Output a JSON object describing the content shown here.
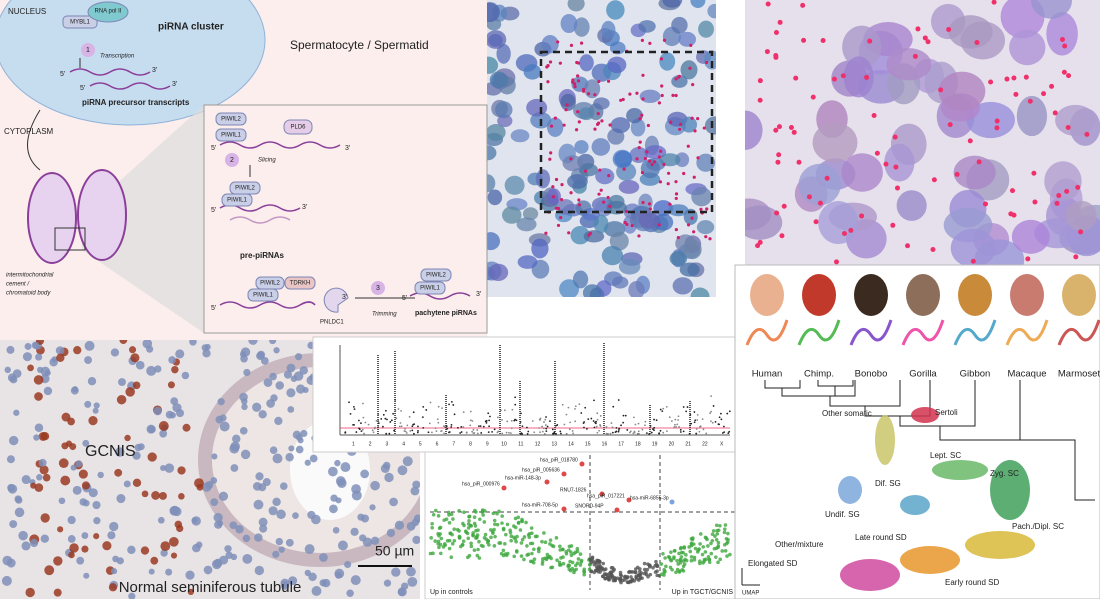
{
  "diagram": {
    "nucleus": "NUCLEUS",
    "mybl1": "MYBL1",
    "rna_pol": "RNA pol II",
    "cluster": "piRNA cluster",
    "step1": "1",
    "transcription": "Transcription",
    "ends": [
      "5'",
      "3'",
      "5'",
      "3'"
    ],
    "precursor": "piRNA precursor transcripts",
    "cytoplasm": "CYTOPLASM",
    "cell": "Spermatocyte / Spermatid",
    "cement": [
      "intermitochondrial",
      "cement /",
      "chromatoid body"
    ],
    "inset": {
      "piwil2_a": "PIWIL2",
      "piwil1_a": "PIWIL1",
      "pld6": "PLD6",
      "step2": "2",
      "slicing": "Slicing",
      "piwil2_b": "PIWIL2",
      "piwil1_b": "PIWIL1",
      "pre": "pre-piRNAs",
      "piwil2_c": "PIWIL2",
      "tdrkh": "TDRKH",
      "piwil1_c": "PIWIL1",
      "pnldc1": "PNLDC1",
      "step3": "3",
      "trimming": "Trimming",
      "piwil2_d": "PIWIL2",
      "piwil1_d": "PIWIL1",
      "pachytene": "pachytene piRNAs",
      "ends": [
        "5'",
        "3'",
        "5'",
        "3'",
        "5'",
        "3'",
        "5'",
        "3'"
      ]
    }
  },
  "histology": {
    "gcnis": "GCNIS",
    "scale": "50 µm",
    "caption": "Normal seminiferous tubule"
  },
  "manhattan": {
    "chromosomes": [
      "1",
      "2",
      "3",
      "4",
      "5",
      "6",
      "7",
      "8",
      "9",
      "10",
      "11",
      "12",
      "13",
      "14",
      "15",
      "16",
      "17",
      "18",
      "19",
      "20",
      "21",
      "22",
      "X"
    ]
  },
  "volcano": {
    "labels": [
      "hsa_piR_018780",
      "hsa_piR_005636",
      "hsa-miR-148-3p",
      "hsa_piR_000976",
      "RNU7-1826",
      "hsa_piR_017221",
      "SNORD-94P",
      "hsa-miR-708-5p",
      "hsa-miR-6855-3p"
    ],
    "left": "Up in controls",
    "right": "Up in TGCT/GCNIS"
  },
  "species": [
    "Human",
    "Chimp.",
    "Bonobo",
    "Gorilla",
    "Gibbon",
    "Macaque",
    "Marmoset"
  ],
  "umap": {
    "labels": [
      "Other somatic",
      "Sertoli",
      "Lept. SC",
      "Zyg. SC",
      "Dif. SG",
      "Undif. SG",
      "Pach./Dipl. SC",
      "Other/mixture",
      "Late round SD",
      "Elongated SD",
      "Early round SD"
    ],
    "axis": "UMAP"
  }
}
